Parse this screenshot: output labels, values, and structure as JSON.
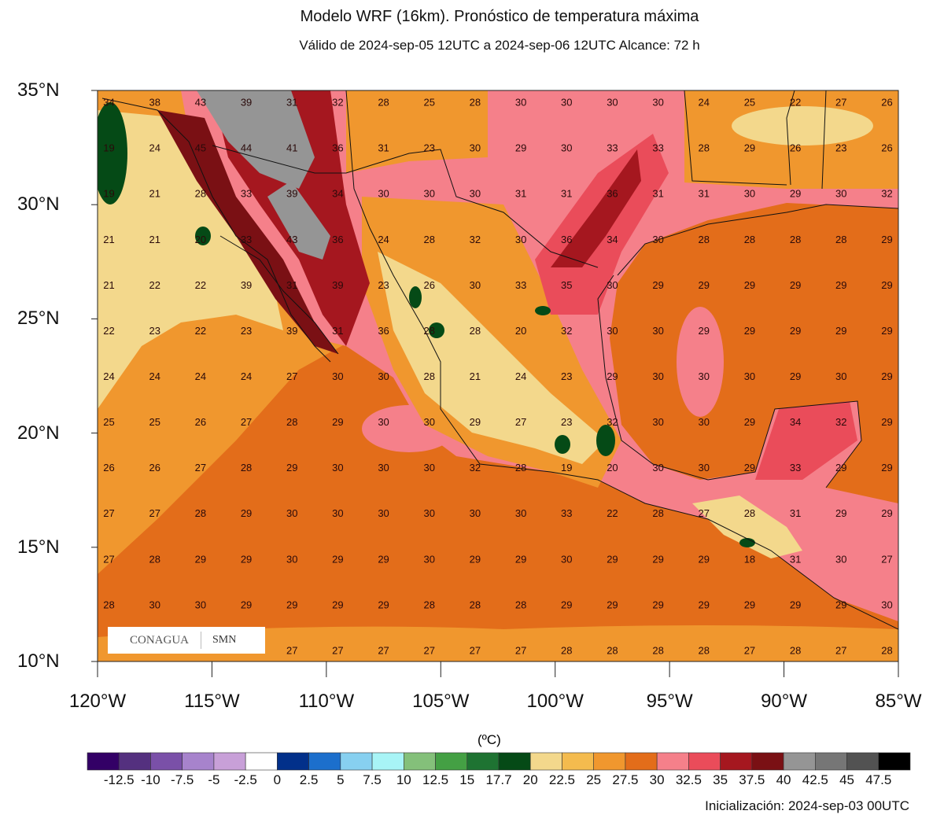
{
  "title": "Modelo WRF (16km). Pronóstico de temperatura máxima",
  "subtitle": "Válido de 2024-sep-05 12UTC a 2024-sep-06 12UTC    Alcance: 72 h",
  "initialization": "Inicialización: 2024-sep-03 00UTC",
  "logo": {
    "left": "CONAGUA",
    "right": "SMN"
  },
  "axes": {
    "lat_labels": [
      "35°N",
      "30°N",
      "25°N",
      "20°N",
      "15°N",
      "10°N"
    ],
    "lon_labels": [
      "120°W",
      "115°W",
      "110°W",
      "105°W",
      "100°W",
      "95°W",
      "90°W",
      "85°W"
    ],
    "lat_range": [
      10,
      35
    ],
    "lon_range": [
      -120,
      -85
    ]
  },
  "colorbar": {
    "unit": "(ºC)",
    "labels": [
      "-12.5",
      "-10",
      "-7.5",
      "-5",
      "-2.5",
      "0",
      "2.5",
      "5",
      "7.5",
      "10",
      "12.5",
      "15",
      "17.7",
      "20",
      "22.5",
      "25",
      "27.5",
      "30",
      "32.5",
      "35",
      "37.5",
      "40",
      "42.5",
      "45",
      "47.5"
    ],
    "colors": [
      "#330066",
      "#54307f",
      "#7a50a8",
      "#a783cc",
      "#c8a0d8",
      "#ffffff",
      "#02308a",
      "#1c6fcc",
      "#87d0f0",
      "#a8f4f6",
      "#84c07a",
      "#44a044",
      "#1e7332",
      "#054a16",
      "#f3d88c",
      "#f4bb4e",
      "#f0972e",
      "#e36d1a",
      "#f5808a",
      "#ea4c5a",
      "#a5171f",
      "#7a1014",
      "#959595",
      "#767676",
      "#525252",
      "#000000"
    ]
  },
  "grid": {
    "lons": [
      -119.5,
      -117.5,
      -115.5,
      -113.5,
      -111.5,
      -109.5,
      -107.5,
      -105.5,
      -103.5,
      -101.5,
      -99.5,
      -97.5,
      -95.5,
      -93.5,
      -91.5,
      -89.5,
      -87.5,
      -85.5
    ],
    "lats": [
      34.5,
      32.5,
      30.5,
      28.5,
      26.5,
      24.5,
      22.5,
      20.5,
      18.5,
      16.5,
      14.5,
      12.5,
      10.5
    ],
    "values": [
      [
        34,
        38,
        43,
        39,
        31,
        32,
        28,
        25,
        28,
        30,
        30,
        30,
        30,
        24,
        25,
        22,
        27,
        26
      ],
      [
        19,
        24,
        45,
        44,
        41,
        36,
        31,
        23,
        30,
        29,
        30,
        33,
        33,
        28,
        29,
        26,
        23,
        26
      ],
      [
        19,
        21,
        28,
        33,
        39,
        34,
        30,
        30,
        30,
        31,
        31,
        36,
        31,
        31,
        30,
        29,
        30,
        32
      ],
      [
        21,
        21,
        20,
        33,
        43,
        36,
        24,
        28,
        32,
        30,
        36,
        34,
        30,
        28,
        28,
        28,
        28,
        29
      ],
      [
        21,
        22,
        22,
        39,
        31,
        39,
        23,
        26,
        30,
        33,
        35,
        30,
        29,
        29,
        29,
        29,
        29,
        29
      ],
      [
        22,
        23,
        22,
        23,
        39,
        31,
        36,
        28,
        28,
        20,
        32,
        30,
        30,
        29,
        29,
        29,
        29,
        29
      ],
      [
        24,
        24,
        24,
        24,
        27,
        30,
        30,
        28,
        21,
        24,
        23,
        29,
        30,
        30,
        30,
        29,
        30,
        29
      ],
      [
        25,
        25,
        26,
        27,
        28,
        29,
        30,
        30,
        29,
        27,
        23,
        32,
        30,
        30,
        29,
        34,
        32,
        29
      ],
      [
        26,
        26,
        27,
        28,
        29,
        30,
        30,
        30,
        32,
        28,
        19,
        20,
        30,
        30,
        29,
        33,
        29,
        29
      ],
      [
        27,
        27,
        28,
        29,
        30,
        30,
        30,
        30,
        30,
        30,
        33,
        22,
        28,
        27,
        28,
        31,
        29,
        29
      ],
      [
        27,
        28,
        29,
        29,
        30,
        29,
        29,
        30,
        29,
        29,
        30,
        29,
        29,
        29,
        18,
        31,
        30,
        27
      ],
      [
        28,
        30,
        30,
        29,
        29,
        29,
        29,
        28,
        28,
        28,
        29,
        29,
        29,
        29,
        29,
        29,
        29,
        30
      ],
      [
        null,
        null,
        null,
        null,
        27,
        27,
        27,
        27,
        27,
        27,
        28,
        28,
        28,
        28,
        27,
        28,
        27,
        28
      ]
    ]
  }
}
